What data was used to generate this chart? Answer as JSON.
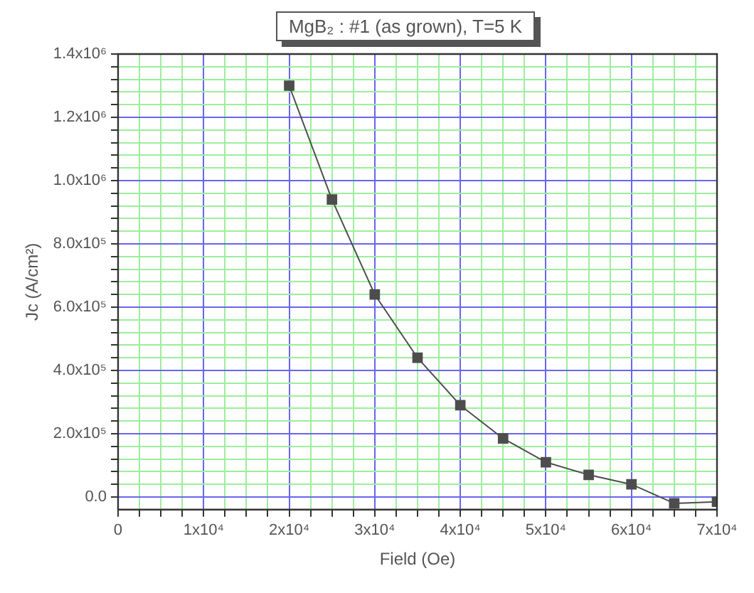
{
  "chart_data": {
    "type": "line",
    "title": "MgB₂ : #1 (as grown), T=5 K",
    "xlabel": "Field (Oe)",
    "ylabel": "Jc (A/cm²)",
    "x": [
      20000,
      25000,
      30000,
      35000,
      40000,
      45000,
      50000,
      55000,
      60000,
      65000,
      70000
    ],
    "series": [
      {
        "color": "#4d4d4d",
        "values": [
          1300000,
          940000,
          640000,
          440000,
          290000,
          185000,
          110000,
          70000,
          40000,
          -20000,
          -15000
        ]
      }
    ],
    "xlim": [
      0,
      70000
    ],
    "ylim": [
      -40000,
      1400000
    ],
    "xticks": [
      0,
      {
        "value": 2500,
        "label": null
      },
      {
        "value": 5000,
        "label": null
      },
      {
        "value": 7500,
        "label": null
      },
      {
        "value": 10000,
        "label": "1x10⁴"
      },
      {
        "value": 12500,
        "label": null
      },
      {
        "value": 15000,
        "label": null
      },
      {
        "value": 17500,
        "label": null
      },
      {
        "value": 20000,
        "label": "2x10⁴"
      },
      {
        "value": 22500,
        "label": null
      },
      {
        "value": 25000,
        "label": null
      },
      {
        "value": 27500,
        "label": null
      },
      {
        "value": 30000,
        "label": "3x10⁴"
      },
      {
        "value": 32500,
        "label": null
      },
      {
        "value": 35000,
        "label": null
      },
      {
        "value": 37500,
        "label": null
      },
      {
        "value": 40000,
        "label": "4x10⁴"
      },
      {
        "value": 42500,
        "label": null
      },
      {
        "value": 45000,
        "label": null
      },
      {
        "value": 47500,
        "label": null
      },
      {
        "value": 50000,
        "label": "5x10⁴"
      },
      {
        "value": 52500,
        "label": null
      },
      {
        "value": 55000,
        "label": null
      },
      {
        "value": 57500,
        "label": null
      },
      {
        "value": 60000,
        "label": "6x10⁴"
      },
      {
        "value": 62500,
        "label": null
      },
      {
        "value": 65000,
        "label": null
      },
      {
        "value": 67500,
        "label": null
      },
      {
        "value": 70000,
        "label": "7x10⁴"
      }
    ],
    "yticks": [
      {
        "value": 0,
        "label": "0.0"
      },
      {
        "value": 40000,
        "label": null
      },
      {
        "value": 80000,
        "label": null
      },
      {
        "value": 120000,
        "label": null
      },
      {
        "value": 160000,
        "label": null
      },
      {
        "value": 200000,
        "label": "2.0x10⁵"
      },
      {
        "value": 240000,
        "label": null
      },
      {
        "value": 280000,
        "label": null
      },
      {
        "value": 320000,
        "label": null
      },
      {
        "value": 360000,
        "label": null
      },
      {
        "value": 400000,
        "label": "4.0x10⁵"
      },
      {
        "value": 440000,
        "label": null
      },
      {
        "value": 480000,
        "label": null
      },
      {
        "value": 520000,
        "label": null
      },
      {
        "value": 560000,
        "label": null
      },
      {
        "value": 600000,
        "label": "6.0x10⁵"
      },
      {
        "value": 640000,
        "label": null
      },
      {
        "value": 680000,
        "label": null
      },
      {
        "value": 720000,
        "label": null
      },
      {
        "value": 760000,
        "label": null
      },
      {
        "value": 800000,
        "label": "8.0x10⁵"
      },
      {
        "value": 840000,
        "label": null
      },
      {
        "value": 880000,
        "label": null
      },
      {
        "value": 920000,
        "label": null
      },
      {
        "value": 960000,
        "label": null
      },
      {
        "value": 1000000,
        "label": "1.0x10⁶"
      },
      {
        "value": 1040000,
        "label": null
      },
      {
        "value": 1080000,
        "label": null
      },
      {
        "value": 1120000,
        "label": null
      },
      {
        "value": 1160000,
        "label": null
      },
      {
        "value": 1200000,
        "label": "1.2x10⁶"
      },
      {
        "value": 1240000,
        "label": null
      },
      {
        "value": 1280000,
        "label": null
      },
      {
        "value": 1320000,
        "label": null
      },
      {
        "value": 1360000,
        "label": null
      },
      {
        "value": 1400000,
        "label": "1.4x10⁶"
      }
    ],
    "grid": true,
    "legend": false,
    "marker": "square",
    "line_style": "solid"
  }
}
